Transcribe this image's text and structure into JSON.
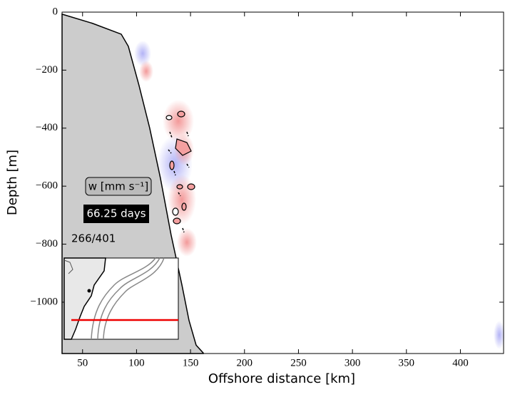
{
  "chart_data": {
    "type": "section",
    "xlabel": "Offshore distance [km]",
    "ylabel": "Depth [m]",
    "xlim": [
      31,
      440
    ],
    "ylim": [
      -1177,
      0
    ],
    "xticks": [
      50,
      100,
      150,
      200,
      250,
      300,
      350,
      400
    ],
    "yticks": [
      0,
      {
        "value": -200,
        "label": "−200"
      },
      {
        "value": -400,
        "label": "−400"
      },
      {
        "value": -600,
        "label": "−600"
      },
      {
        "value": -800,
        "label": "−800"
      },
      {
        "value": -1000,
        "label": "−1000"
      }
    ],
    "bathymetry": {
      "color": "#cccccc",
      "x": [
        31,
        59.4,
        85.8,
        92.4,
        102.3,
        112.2,
        122.1,
        132,
        142,
        148.6,
        155.2,
        161.8
      ],
      "depth": [
        -7,
        -39,
        -76,
        -118,
        -253,
        -400,
        -572,
        -768,
        -940,
        -1063,
        -1148,
        -1175
      ]
    },
    "variable_label": "w [mm s⁻¹]",
    "time_label": "66.25 days",
    "frame_label": "266/401"
  }
}
